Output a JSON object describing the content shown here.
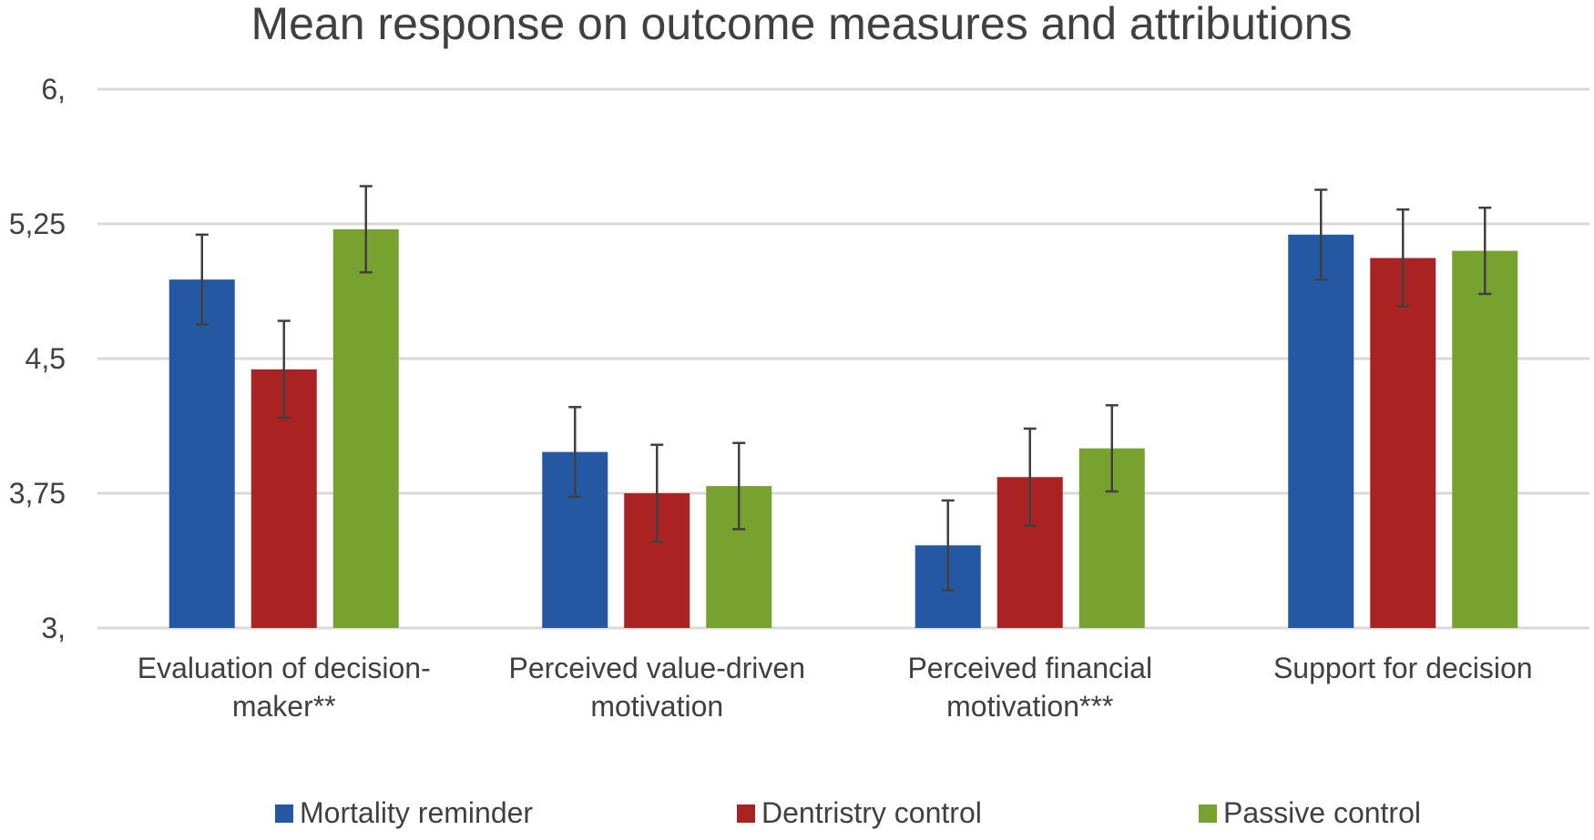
{
  "chart_data": {
    "type": "bar",
    "title": "Mean response on outcome measures and attributions",
    "xlabel": "",
    "ylabel": "",
    "ylim": [
      3,
      6
    ],
    "yticks": [
      "3,",
      "3,75",
      "4,5",
      "5,25",
      "6,"
    ],
    "ytick_values": [
      3,
      3.75,
      4.5,
      5.25,
      6
    ],
    "grid": true,
    "legend_position": "bottom",
    "categories": [
      [
        "Evaluation of decision-",
        "maker**"
      ],
      [
        "Perceived value-driven",
        "motivation"
      ],
      [
        "Perceived financial",
        "motivation***"
      ],
      [
        "Support for decision"
      ]
    ],
    "series": [
      {
        "name": "Mortality reminder",
        "color": "#2558a3",
        "values": [
          4.94,
          3.98,
          3.46,
          5.19
        ],
        "error": [
          0.25,
          0.25,
          0.25,
          0.25
        ]
      },
      {
        "name": "Dentristry control",
        "color": "#aa2322",
        "values": [
          4.44,
          3.75,
          3.84,
          5.06
        ],
        "error": [
          0.27,
          0.27,
          0.27,
          0.27
        ]
      },
      {
        "name": "Passive control",
        "color": "#77a22f",
        "values": [
          5.22,
          3.79,
          4.0,
          5.1
        ],
        "error": [
          0.24,
          0.24,
          0.24,
          0.24
        ]
      }
    ]
  }
}
